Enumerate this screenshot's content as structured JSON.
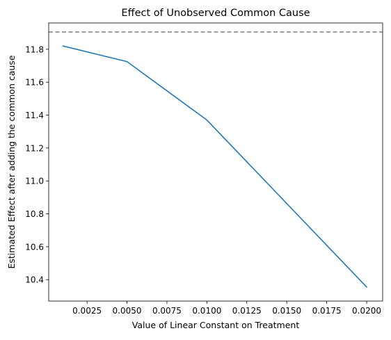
{
  "chart_data": {
    "type": "line",
    "title": "Effect of Unobserved Common Cause",
    "xlabel": "Value of Linear Constant on Treatment",
    "ylabel": "Estimated Effect after adding the common cause",
    "xlim": [
      0.0001,
      0.021
    ],
    "ylim": [
      10.27,
      11.96
    ],
    "x_ticks": [
      0.0025,
      0.005,
      0.0075,
      0.01,
      0.0125,
      0.015,
      0.0175,
      0.02
    ],
    "x_tick_labels": [
      "0.0025",
      "0.0050",
      "0.0075",
      "0.0100",
      "0.0125",
      "0.0150",
      "0.0175",
      "0.0200"
    ],
    "y_ticks": [
      10.4,
      10.6,
      10.8,
      11.0,
      11.2,
      11.4,
      11.6,
      11.8
    ],
    "y_tick_labels": [
      "10.4",
      "10.6",
      "10.8",
      "11.0",
      "11.2",
      "11.4",
      "11.6",
      "11.8"
    ],
    "grid": false,
    "series": [
      {
        "color": "#1f77b4",
        "x": [
          0.001,
          0.005,
          0.01,
          0.02
        ],
        "y": [
          11.82,
          11.725,
          11.37,
          10.355
        ]
      }
    ],
    "reference_line": {
      "orientation": "horizontal",
      "y": 11.905,
      "style": "dashed",
      "color": "#808080"
    }
  }
}
